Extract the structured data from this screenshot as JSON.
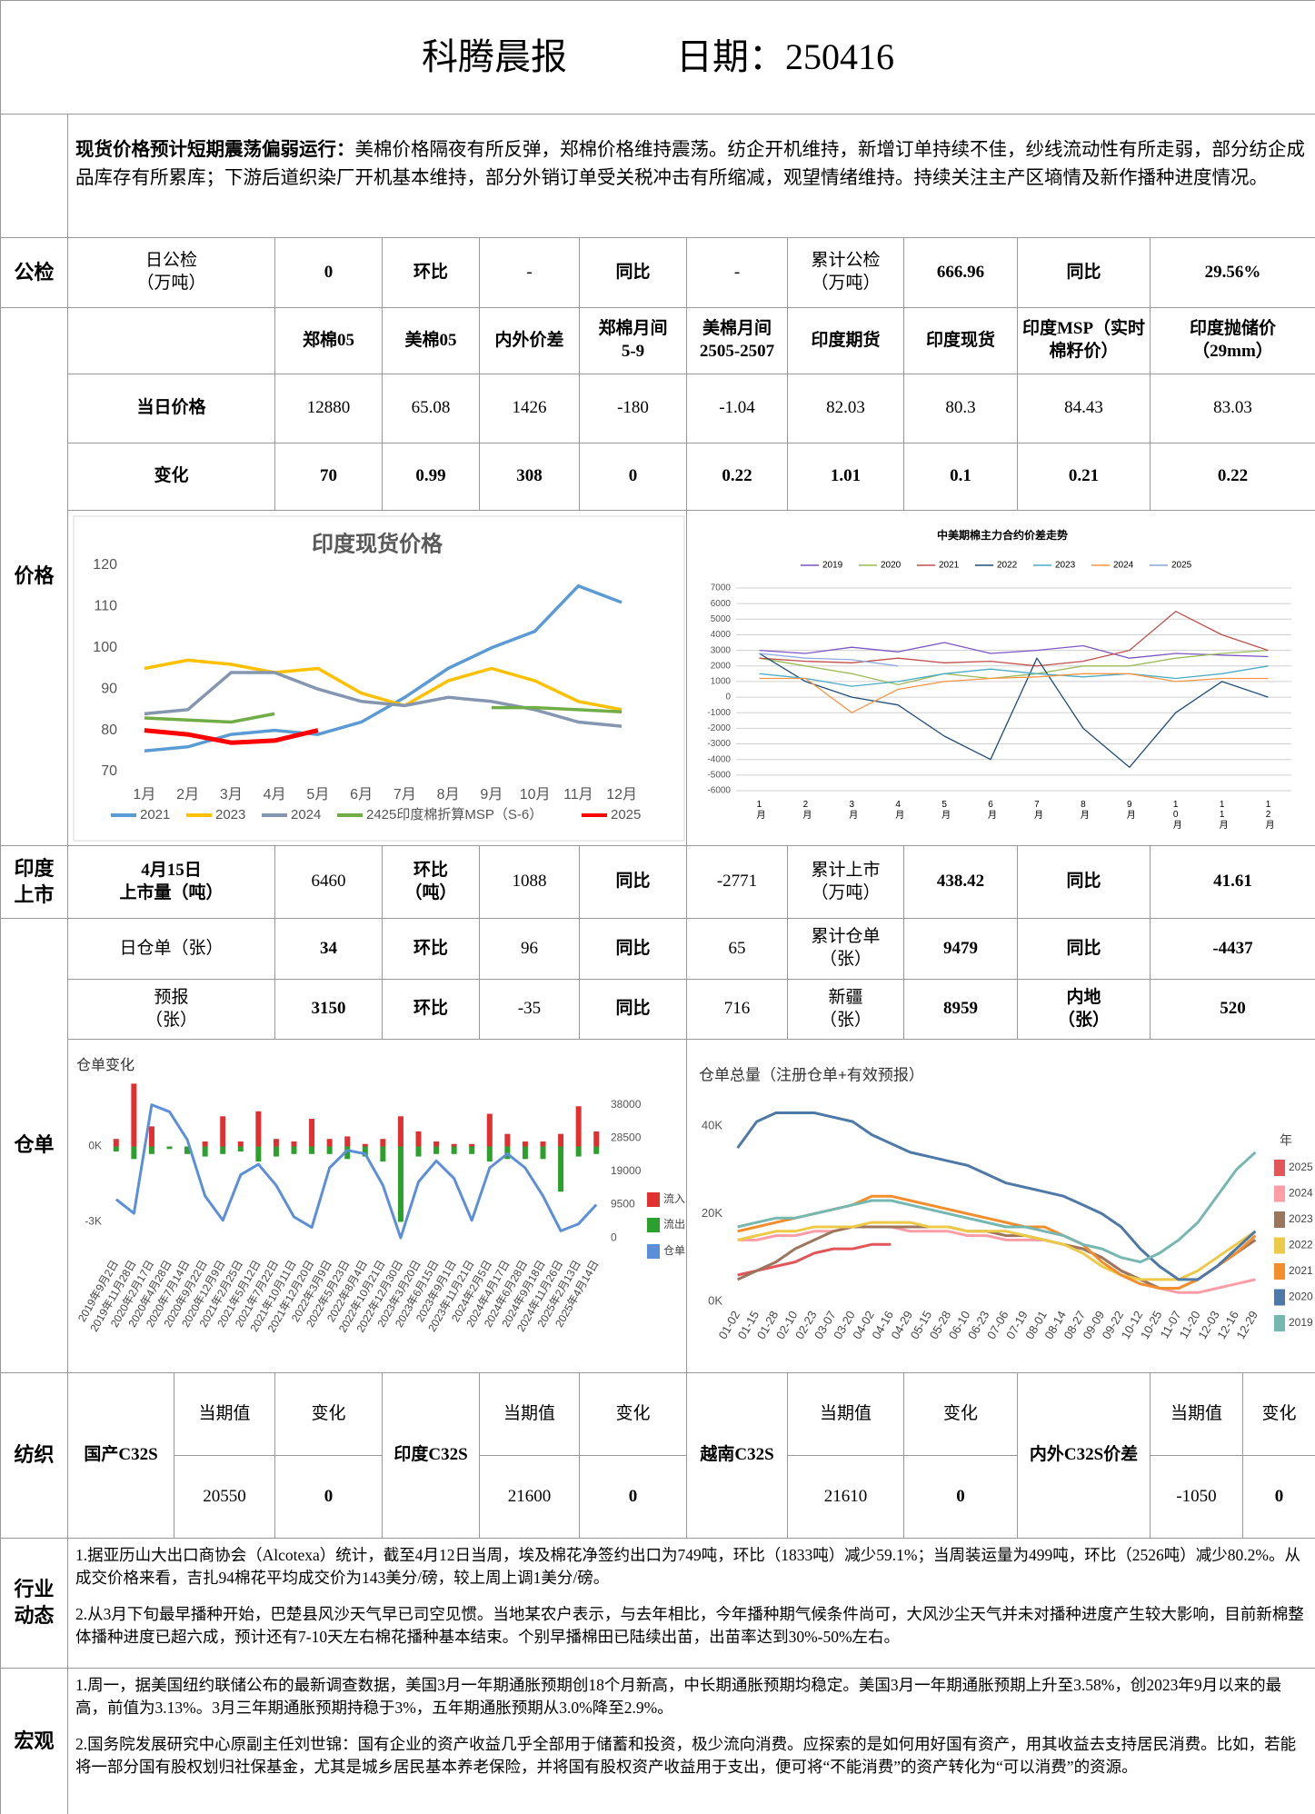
{
  "header": {
    "title": "科腾晨报",
    "date": "日期：250416"
  },
  "summary": {
    "lead": "现货价格预计短期震荡偏弱运行：",
    "text": "美棉价格隔夜有所反弹，郑棉价格维持震荡。纺企开机维持，新增订单持续不佳，纱线流动性有所走弱，部分纺企成品库存有所累库；下游后道织染厂开机基本维持，部分外销订单受关税冲击有所缩减，观望情绪维持。持续关注主产区墒情及新作播种进度情况。"
  },
  "inspection": {
    "section": "公检",
    "cells": [
      "日公检\n（万吨）",
      0,
      "环比",
      "-",
      "同比",
      "-",
      "累计公检\n（万吨）",
      666.96,
      "同比",
      "29.56%"
    ]
  },
  "prices": {
    "section": "价格",
    "headers": [
      "郑棉05",
      "美棉05",
      "内外价差",
      "郑棉月间\n5-9",
      "美棉月间\n2505-2507",
      "印度期货",
      "印度现货",
      "印度MSP（实时\n棉籽价）",
      "印度抛储价\n（29mm）"
    ],
    "rows": [
      {
        "label": "当日价格",
        "values": [
          12880,
          65.08,
          1426,
          -180,
          -1.04,
          82.03,
          80.3,
          84.43,
          83.03
        ]
      },
      {
        "label": "变化",
        "values": [
          70,
          0.99,
          308,
          0,
          0.22,
          1.01,
          0.1,
          0.21,
          0.22
        ]
      }
    ]
  },
  "india_arrivals": {
    "section": "印度\n上市",
    "cells": [
      "4月15日\n上市量（吨）",
      6460,
      "环比\n（吨）",
      1088,
      "同比",
      -2771,
      "累计上市\n（万吨）",
      438.42,
      "同比",
      41.61
    ]
  },
  "warehouse": {
    "section": "仓单",
    "rows": [
      [
        "日仓单（张）",
        34,
        "环比",
        96,
        "同比",
        65,
        "累计仓单\n（张）",
        9479,
        "同比",
        -4437
      ],
      [
        "预报\n（张）",
        3150,
        "环比",
        -35,
        "同比",
        716,
        "新疆\n（张）",
        8959,
        "内地\n（张）",
        520
      ]
    ]
  },
  "textile": {
    "section": "纺织",
    "value_header": "当期值",
    "change_header": "变化",
    "items": [
      {
        "name": "国产C32S",
        "value": 20550,
        "change": 0
      },
      {
        "name": "印度C32S",
        "value": 21600,
        "change": 0
      },
      {
        "name": "越南C32S",
        "value": 21610,
        "change": 0
      },
      {
        "name": "内外C32S价差",
        "value": -1050,
        "change": 0
      }
    ]
  },
  "industry": {
    "section": "行业\n动态",
    "paragraphs": [
      "1.据亚历山大出口商协会（Alcotexa）统计，截至4月12日当周，埃及棉花净签约出口为749吨，环比（1833吨）减少59.1%；当周装运量为499吨，环比（2526吨）减少80.2%。从成交价格来看，吉扎94棉花平均成交价为143美分/磅，较上周上调1美分/磅。",
      "2.从3月下旬最早播种开始，巴楚县风沙天气早已司空见惯。当地某农户表示，与去年相比，今年播种期气候条件尚可，大风沙尘天气并未对播种进度产生较大影响，目前新棉整体播种进度已超六成，预计还有7-10天左右棉花播种基本结束。个别早播棉田已陆续出苗，出苗率达到30%-50%左右。"
    ]
  },
  "macro": {
    "section": "宏观",
    "paragraphs": [
      "1.周一，据美国纽约联储公布的最新调查数据，美国3月一年期通胀预期创18个月新高，中长期通胀预期均稳定。美国3月一年期通胀预期上升至3.58%，创2023年9月以来的最高，前值为3.13%。3月三年期通胀预期持稳于3%，五年期通胀预期从3.0%降至2.9%。",
      "2.国务院发展研究中心原副主任刘世锦：国有企业的资产收益几乎全部用于储蓄和投资，极少流向消费。应探索的是如何用好国有资产，用其收益去支持居民消费。比如，若能将一部分国有股权划归社保基金，尤其是城乡居民基本养老保险，并将国有股权资产收益用于支出，便可将“不能消费”的资产转化为“可以消费”的资源。"
    ]
  },
  "chart_data": [
    {
      "type": "line",
      "title": "印度现货价格",
      "categories": [
        "1月",
        "2月",
        "3月",
        "4月",
        "5月",
        "6月",
        "7月",
        "8月",
        "9月",
        "10月",
        "11月",
        "12月"
      ],
      "ylim": [
        70,
        120
      ],
      "yticks": [
        70,
        80,
        90,
        100,
        110,
        120
      ],
      "legend": "bottom",
      "grid": false,
      "series": [
        {
          "name": "2021",
          "color": "#5b9bd5",
          "values": [
            75,
            76,
            79,
            80,
            79,
            82,
            88,
            95,
            100,
            104,
            115,
            111
          ]
        },
        {
          "name": "2023",
          "color": "#ffc000",
          "values": [
            95,
            97,
            96,
            94,
            95,
            89,
            86,
            92,
            95,
            92,
            87,
            85
          ]
        },
        {
          "name": "2024",
          "color": "#8496b0",
          "values": [
            84,
            85,
            94,
            94,
            90,
            87,
            86,
            88,
            87,
            85,
            82,
            81
          ]
        },
        {
          "name": "2425印度棉折算MSP（S-6）",
          "color": "#70ad47",
          "values": [
            83,
            82.5,
            82,
            84,
            null,
            null,
            null,
            null,
            85.5,
            85.5,
            85,
            84.5
          ]
        },
        {
          "name": "2025",
          "color": "#ff0000",
          "values": [
            80,
            79,
            77,
            77.5,
            80,
            null,
            null,
            null,
            null,
            null,
            null,
            null
          ]
        }
      ]
    },
    {
      "type": "line",
      "title": "中美期棉主力合约价差走势",
      "categories": [
        "1月",
        "2月",
        "3月",
        "4月",
        "5月",
        "6月",
        "7月",
        "8月",
        "9月",
        "10月",
        "11月",
        "12月"
      ],
      "ylim": [
        -6000,
        7000
      ],
      "yticks": [
        -6000,
        -5000,
        -4000,
        -3000,
        -2000,
        -1000,
        0,
        1000,
        2000,
        3000,
        4000,
        5000,
        6000,
        7000
      ],
      "legend": "top",
      "grid": true,
      "series": [
        {
          "name": "2019",
          "color": "#7e57c2",
          "values": [
            3000,
            2800,
            3200,
            2900,
            3500,
            2800,
            3000,
            3300,
            2500,
            2800,
            2700,
            2600
          ]
        },
        {
          "name": "2020",
          "color": "#9bbb59",
          "values": [
            2500,
            2000,
            1500,
            800,
            1500,
            1200,
            1500,
            2000,
            2000,
            2500,
            2800,
            3000
          ]
        },
        {
          "name": "2021",
          "color": "#c0504d",
          "values": [
            2500,
            2300,
            2200,
            2500,
            2200,
            2300,
            2000,
            2300,
            3000,
            5500,
            4000,
            3000
          ]
        },
        {
          "name": "2022",
          "color": "#1f4e79",
          "values": [
            2800,
            1000,
            0,
            -500,
            -2500,
            -4000,
            2500,
            -2000,
            -4500,
            -1000,
            1000,
            0
          ]
        },
        {
          "name": "2023",
          "color": "#4bacc6",
          "values": [
            1500,
            1200,
            700,
            1000,
            1500,
            1800,
            1500,
            1300,
            1500,
            1200,
            1500,
            2000
          ]
        },
        {
          "name": "2024",
          "color": "#f79646",
          "values": [
            1200,
            1200,
            -1000,
            500,
            1000,
            1200,
            1300,
            1500,
            1500,
            1000,
            1200,
            1200
          ]
        },
        {
          "name": "2025",
          "color": "#8ea9db",
          "values": [
            2800,
            2500,
            2400,
            2000,
            null,
            null,
            null,
            null,
            null,
            null,
            null,
            null
          ]
        }
      ]
    },
    {
      "type": "combo",
      "title": "仓单变化",
      "categories": [
        "2019年9月2日",
        "2019年11月28日",
        "2020年2月17日",
        "2020年4月28日",
        "2020年7月14日",
        "2020年9月22日",
        "2020年12月9日",
        "2021年2月25日",
        "2021年5月12日",
        "2021年7月22日",
        "2021年10月11日",
        "2021年12月20日",
        "2022年3月9日",
        "2022年5月23日",
        "2022年8月4日",
        "2022年10月21日",
        "2022年12月30日",
        "2023年3月20日",
        "2023年6月15日",
        "2023年9月1日",
        "2023年11月21日",
        "2024年2月5日",
        "2024年4月17日",
        "2024年6月28日",
        "2024年9月18日",
        "2024年11月26日",
        "2025年2月13日",
        "2025年4月14日"
      ],
      "ylim": [
        -3960,
        2260
      ],
      "yticks": [
        {
          "value": 0,
          "label": "0K"
        },
        {
          "value": -3000,
          "label": "-3K"
        }
      ],
      "y2lim": [
        -2300,
        42300
      ],
      "y2ticks": [
        0,
        9500,
        19000,
        28500,
        38000
      ],
      "legend": "right",
      "series": [
        {
          "name": "流入",
          "color": "#e03030",
          "values": [
            300,
            2500,
            800,
            0,
            0,
            200,
            1200,
            200,
            1400,
            300,
            200,
            1100,
            300,
            400,
            100,
            300,
            1200,
            600,
            200,
            100,
            100,
            1300,
            500,
            200,
            200,
            500,
            1600,
            600
          ]
        },
        {
          "name": "流出",
          "color": "#2ca02c",
          "values": [
            -200,
            -500,
            -300,
            -100,
            -300,
            -400,
            -300,
            -200,
            -600,
            -400,
            -300,
            -300,
            -300,
            -500,
            -400,
            -600,
            -3000,
            -400,
            -300,
            -300,
            -300,
            -600,
            -500,
            -500,
            -500,
            -1800,
            -400,
            -300
          ]
        },
        {
          "name": "仓单",
          "color": "#5b8fd9",
          "axis": "y2",
          "values": [
            11000,
            7000,
            38000,
            36000,
            28000,
            12000,
            5000,
            18000,
            21000,
            15000,
            6000,
            3000,
            20000,
            25000,
            24000,
            15000,
            0,
            16000,
            22000,
            17000,
            5000,
            20000,
            24000,
            20000,
            12000,
            2000,
            4000,
            9500
          ]
        }
      ]
    },
    {
      "type": "line",
      "title": "仓单总量（注册仓单+有效预报）",
      "legend_title": "年",
      "legend": "right",
      "categories": [
        "01-02",
        "01-15",
        "01-28",
        "02-10",
        "02-23",
        "03-07",
        "03-20",
        "04-02",
        "04-16",
        "04-29",
        "05-15",
        "05-28",
        "06-10",
        "06-23",
        "07-06",
        "07-19",
        "08-01",
        "08-14",
        "08-27",
        "09-09",
        "09-22",
        "10-12",
        "10-25",
        "11-07",
        "11-20",
        "12-03",
        "12-16",
        "12-29"
      ],
      "ylim": [
        0,
        46000
      ],
      "yticks": [
        {
          "value": 0,
          "label": "0K"
        },
        {
          "value": 20000,
          "label": "20K"
        },
        {
          "value": 40000,
          "label": "40K"
        }
      ],
      "grid": false,
      "series": [
        {
          "name": "2025",
          "color": "#e15759",
          "values": [
            6000,
            7000,
            8000,
            9000,
            11000,
            12000,
            12000,
            13000,
            13000,
            null,
            null,
            null,
            null,
            null,
            null,
            null,
            null,
            null,
            null,
            null,
            null,
            null,
            null,
            null,
            null,
            null,
            null,
            null
          ]
        },
        {
          "name": "2024",
          "color": "#ff9da7",
          "values": [
            14000,
            14000,
            15000,
            15000,
            16000,
            16000,
            17000,
            17000,
            17000,
            16000,
            16000,
            16000,
            15000,
            15000,
            14000,
            14000,
            14000,
            13000,
            12000,
            10000,
            7000,
            5000,
            3000,
            2000,
            2000,
            3000,
            4000,
            5000
          ]
        },
        {
          "name": "2023",
          "color": "#9c755f",
          "values": [
            5000,
            7000,
            9000,
            12000,
            14000,
            16000,
            17000,
            17000,
            17000,
            17000,
            17000,
            17000,
            16000,
            16000,
            15000,
            15000,
            14000,
            13000,
            12000,
            10000,
            7000,
            5000,
            3000,
            3000,
            5000,
            8000,
            11000,
            14000
          ]
        },
        {
          "name": "2022",
          "color": "#edc948",
          "values": [
            14000,
            15000,
            16000,
            16000,
            17000,
            17000,
            17000,
            18000,
            18000,
            18000,
            17000,
            17000,
            16000,
            16000,
            16000,
            15000,
            14000,
            13000,
            11000,
            8000,
            6000,
            5000,
            5000,
            5000,
            7000,
            10000,
            13000,
            16000
          ]
        },
        {
          "name": "2021",
          "color": "#f28e2b",
          "values": [
            16000,
            17000,
            18000,
            19000,
            20000,
            21000,
            22000,
            24000,
            24000,
            23000,
            22000,
            21000,
            20000,
            19000,
            18000,
            17000,
            17000,
            15000,
            13000,
            9000,
            6000,
            4000,
            3000,
            3000,
            5000,
            8000,
            11000,
            15000
          ]
        },
        {
          "name": "2020",
          "color": "#4e79a7",
          "values": [
            35000,
            41000,
            43000,
            43000,
            43000,
            42000,
            41000,
            38000,
            36000,
            34000,
            33000,
            32000,
            31000,
            29000,
            27000,
            26000,
            25000,
            24000,
            22000,
            20000,
            17000,
            12000,
            8000,
            5000,
            5000,
            8000,
            12000,
            16000
          ]
        },
        {
          "name": "2019",
          "color": "#76b7b2",
          "values": [
            17000,
            18000,
            19000,
            19000,
            20000,
            21000,
            22000,
            23000,
            23000,
            22000,
            21000,
            20000,
            19000,
            18000,
            17000,
            17000,
            16000,
            15000,
            13000,
            12000,
            10000,
            9000,
            11000,
            14000,
            18000,
            24000,
            30000,
            34000
          ]
        }
      ]
    }
  ]
}
